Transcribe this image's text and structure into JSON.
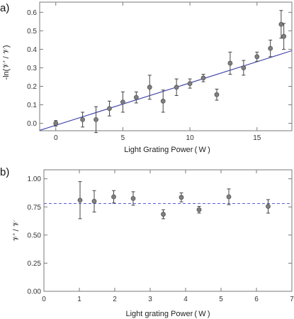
{
  "chart_data": [
    {
      "type": "scatter",
      "panel_label": "a)",
      "xlabel": "Light Grating Power ( W )",
      "ylabel": "-ln(𝒱’ / 𝒱)",
      "xlim": [
        -1.2,
        17.6
      ],
      "ylim": [
        -0.04,
        0.655
      ],
      "xticks": [
        0,
        5,
        10,
        15
      ],
      "xtick_labels": [
        "0",
        "5",
        "10",
        "15"
      ],
      "yticks": [
        0.0,
        0.1,
        0.2,
        0.3,
        0.4,
        0.5,
        0.6
      ],
      "ytick_labels": [
        "0.0",
        "0.1",
        "0.2",
        "0.3",
        "0.4",
        "0.5",
        "0.6"
      ],
      "grid": false,
      "points": [
        {
          "x": 0,
          "y": 0.0,
          "err": 0.015
        },
        {
          "x": 2,
          "y": 0.02,
          "err": 0.04
        },
        {
          "x": 3,
          "y": 0.02,
          "err": 0.07
        },
        {
          "x": 4,
          "y": 0.08,
          "err": 0.04
        },
        {
          "x": 5,
          "y": 0.115,
          "err": 0.055
        },
        {
          "x": 6,
          "y": 0.14,
          "err": 0.03
        },
        {
          "x": 7,
          "y": 0.195,
          "err": 0.065
        },
        {
          "x": 8,
          "y": 0.12,
          "err": 0.06
        },
        {
          "x": 9,
          "y": 0.195,
          "err": 0.045
        },
        {
          "x": 10,
          "y": 0.215,
          "err": 0.025
        },
        {
          "x": 11,
          "y": 0.245,
          "err": 0.02
        },
        {
          "x": 12,
          "y": 0.155,
          "err": 0.03
        },
        {
          "x": 13,
          "y": 0.325,
          "err": 0.06
        },
        {
          "x": 14,
          "y": 0.3,
          "err": 0.04
        },
        {
          "x": 15,
          "y": 0.36,
          "err": 0.025
        },
        {
          "x": 16,
          "y": 0.405,
          "err": 0.045
        },
        {
          "x": 16.8,
          "y": 0.535,
          "err": 0.075
        },
        {
          "x": 17,
          "y": 0.47,
          "err": 0.07
        }
      ],
      "fit_line": {
        "slope": 0.0229,
        "intercept": -0.0105,
        "color": "#3b3fa8",
        "style": "solid"
      },
      "colors": {
        "marker": "#7f7f7f",
        "marker_edge": "#555555",
        "error_bar": "#444444",
        "frame": "#7a7a7a"
      }
    },
    {
      "type": "scatter",
      "panel_label": "b)",
      "xlabel": "Light grating Power ( W )",
      "ylabel": "𝒱’ / 𝒱",
      "xlim": [
        0,
        7
      ],
      "ylim": [
        0,
        1.08
      ],
      "xticks": [
        0,
        1,
        2,
        3,
        4,
        5,
        6,
        7
      ],
      "xtick_labels": [
        "0",
        "1",
        "2",
        "3",
        "4",
        "5",
        "6",
        "7"
      ],
      "yticks": [
        0.0,
        0.25,
        0.5,
        0.75,
        1.0
      ],
      "ytick_labels": [
        "0.00",
        "0.25",
        "0.50",
        "0.75",
        "1.00"
      ],
      "grid": false,
      "points": [
        {
          "x": 1.02,
          "y": 0.81,
          "err": 0.165
        },
        {
          "x": 1.42,
          "y": 0.8,
          "err": 0.095
        },
        {
          "x": 1.97,
          "y": 0.84,
          "err": 0.055
        },
        {
          "x": 2.52,
          "y": 0.825,
          "err": 0.06
        },
        {
          "x": 3.37,
          "y": 0.685,
          "err": 0.04
        },
        {
          "x": 3.88,
          "y": 0.835,
          "err": 0.04
        },
        {
          "x": 4.38,
          "y": 0.725,
          "err": 0.03
        },
        {
          "x": 5.22,
          "y": 0.84,
          "err": 0.07
        },
        {
          "x": 6.33,
          "y": 0.755,
          "err": 0.06
        }
      ],
      "reference_line": {
        "y": 0.78,
        "color": "#5a5ee0",
        "style": "dashed"
      },
      "colors": {
        "marker": "#7f7f7f",
        "marker_edge": "#555555",
        "error_bar": "#444444",
        "frame": "#7a7a7a"
      }
    }
  ]
}
